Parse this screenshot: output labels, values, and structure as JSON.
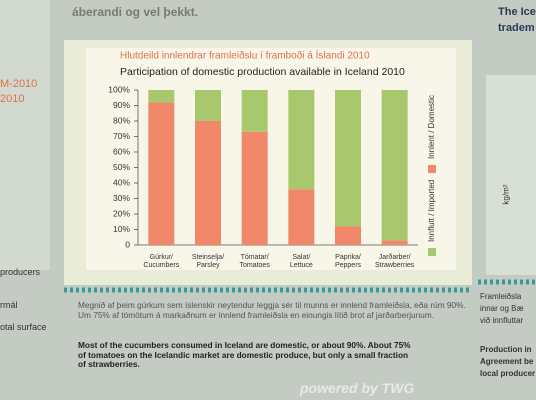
{
  "chart_data": {
    "type": "stacked-bar",
    "title": "Hlutdeild innlendrar framleiðslu í framboði á Íslandi 2010",
    "subtitle": "Participation of domestic production available in Iceland 2010",
    "categories": [
      "Gúrkur/\nCucumbers",
      "Steinselja/\nParsley",
      "Tómatar/\nTomatoes",
      "Salat/\nLettuce",
      "Paprika/\nPeppers",
      "Jarðarber/\nStrawberries"
    ],
    "series": [
      {
        "name": "Innlent / Domestic",
        "color": "#f0876a",
        "values": [
          92,
          80,
          73,
          36,
          12,
          3
        ]
      },
      {
        "name": "Innflutt / Imported",
        "color": "#a9c76c",
        "values": [
          8,
          20,
          27,
          64,
          88,
          97
        ]
      }
    ],
    "ylim": [
      0,
      100
    ],
    "yticks": [
      0,
      {
        "value": 10,
        "label": "10%"
      },
      {
        "value": 20,
        "label": "20%"
      },
      {
        "value": 30,
        "label": "30%"
      },
      {
        "value": 40,
        "label": "40%"
      },
      {
        "value": 50,
        "label": "50%"
      },
      {
        "value": 60,
        "label": "60%"
      },
      {
        "value": 70,
        "label": "70%"
      },
      {
        "value": 80,
        "label": "80%"
      },
      {
        "value": 90,
        "label": "90%"
      },
      {
        "value": 100,
        "label": "100%"
      }
    ],
    "grid": false,
    "legend": "right"
  },
  "board": {
    "top_text": "áberandi og vel þekkt.",
    "caption_is": "Megnið af þeim gúrkum sem íslenskir neytendur leggja sér til munns er innlend framleiðsla, eða rúm 90%. Um 75% af tómötum á markaðnum er innlend framleiðsla en einungis lítið brot af jarðarberjunum.",
    "caption_en": "Most of the cucumbers consumed in Iceland are domestic, or about 90%. About 75% of tomatoes on the Icelandic market are domestic produce, but only a small fraction of strawberries.",
    "left_texts": [
      "M-2010",
      "2010",
      "producers",
      "rmál",
      "otal surface"
    ],
    "right_texts": [
      "The Ice",
      "tradem",
      "kg/m²",
      "Framleiðsla",
      "innar og Bæ",
      "við innfluttar",
      "Production in",
      "Agreement be",
      "local producer"
    ],
    "watermark": "powered by TWG"
  }
}
